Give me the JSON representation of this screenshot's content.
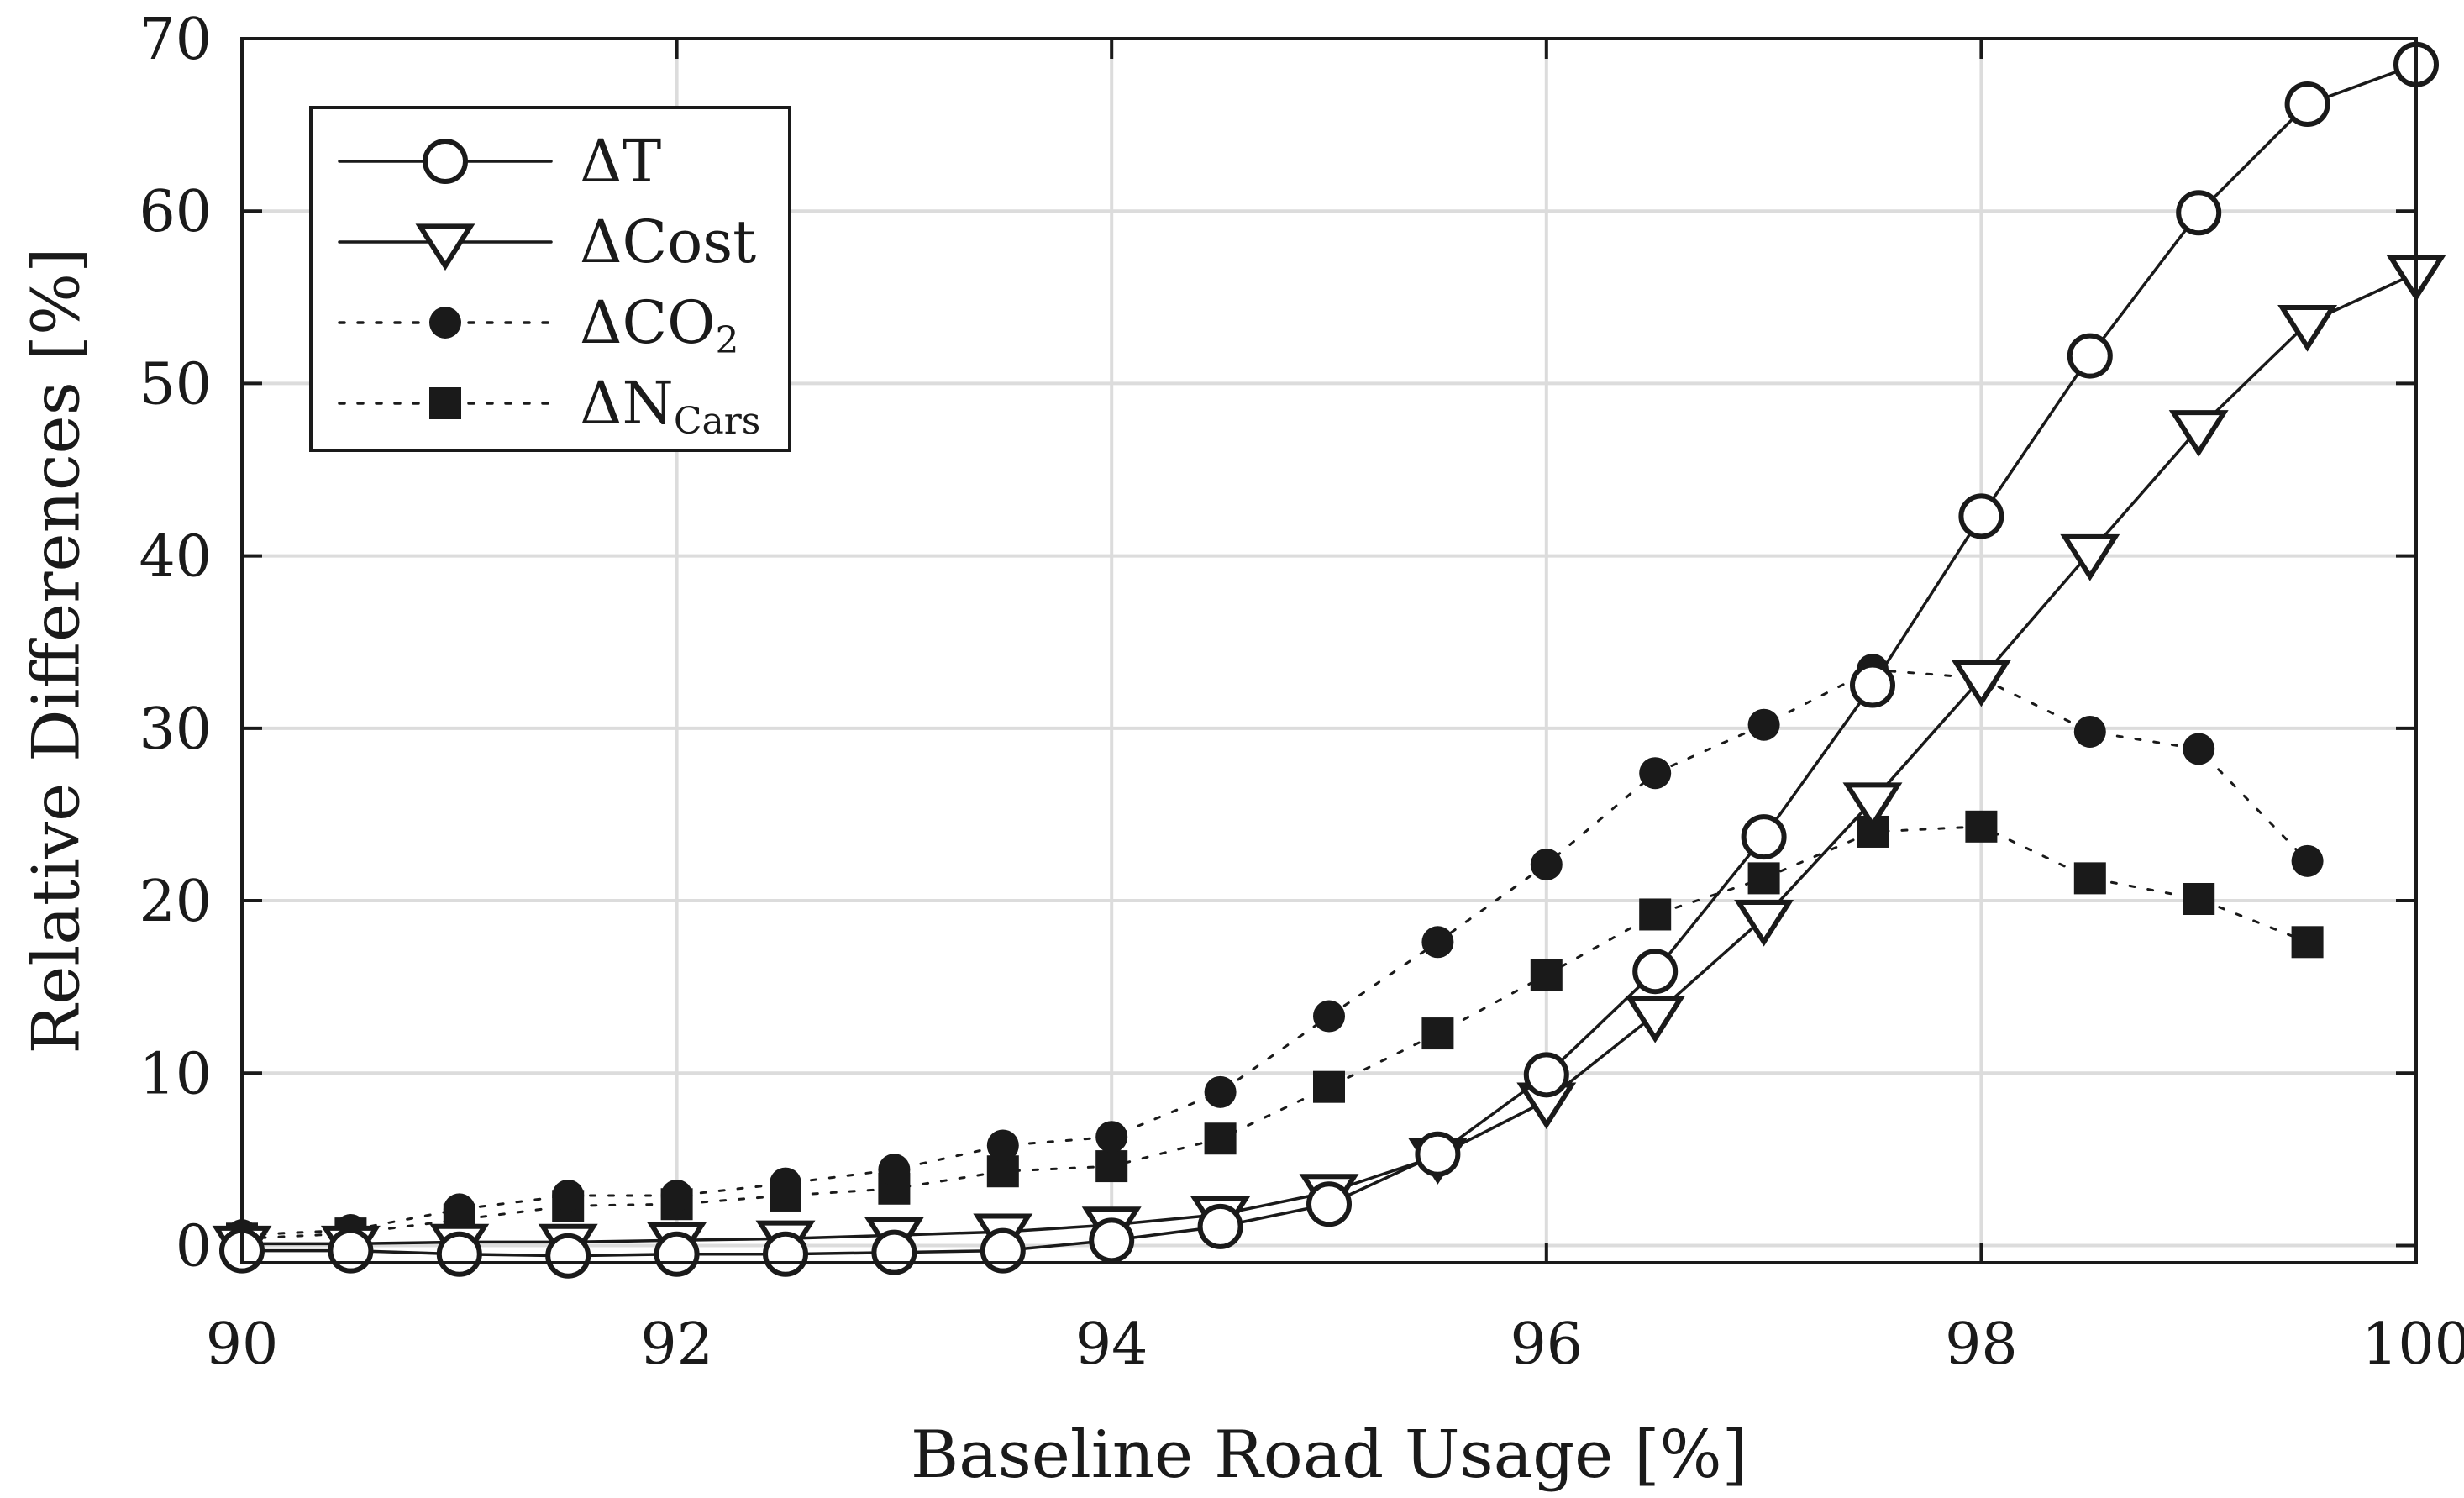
{
  "chart_data": {
    "type": "line",
    "title": "",
    "xlabel": "Baseline Road Usage [%]",
    "ylabel": "Relative Differences [%]",
    "xlim": [
      90,
      100
    ],
    "ylim": [
      -1,
      70
    ],
    "xticks": [
      90,
      92,
      94,
      96,
      98,
      100
    ],
    "yticks": [
      0,
      10,
      20,
      30,
      40,
      50,
      60,
      70
    ],
    "grid": true,
    "legend_position": "top-left",
    "x": [
      90,
      90.5,
      91,
      91.5,
      92,
      92.5,
      93,
      93.5,
      94,
      94.5,
      95,
      95.5,
      96,
      96.5,
      97,
      97.5,
      98,
      98.5,
      99,
      99.5,
      100
    ],
    "series": [
      {
        "legend": "ΔT",
        "label_main": "ΔT",
        "label_sub": "",
        "marker": "circle-open",
        "line_style": "solid",
        "color": "#1a1a1a",
        "values": [
          -0.3,
          -0.3,
          -0.5,
          -0.6,
          -0.5,
          -0.5,
          -0.4,
          -0.3,
          0.3,
          1.1,
          2.4,
          5.3,
          9.9,
          15.9,
          23.7,
          32.5,
          42.3,
          51.6,
          59.9,
          66.2,
          68.5
        ]
      },
      {
        "legend": "ΔCost",
        "label_main": "ΔCost",
        "label_sub": "",
        "marker": "triangle-down-open",
        "line_style": "solid",
        "color": "#1a1a1a",
        "values": [
          0.1,
          0.1,
          0.2,
          0.2,
          0.3,
          0.4,
          0.6,
          0.8,
          1.2,
          1.8,
          3.1,
          5.2,
          8.4,
          13.4,
          19.0,
          25.8,
          32.9,
          40.2,
          47.4,
          53.5,
          56.4
        ]
      },
      {
        "legend": "ΔCO2",
        "label_main": "ΔCO",
        "label_sub": "2",
        "marker": "circle-filled",
        "line_style": "dotted",
        "color": "#1a1a1a",
        "values": [
          0.6,
          0.9,
          2.1,
          2.9,
          2.9,
          3.6,
          4.4,
          5.8,
          6.3,
          8.9,
          13.3,
          17.6,
          22.1,
          27.4,
          30.2,
          33.4,
          32.9,
          29.8,
          28.8,
          22.3,
          null
        ]
      },
      {
        "legend": "ΔNCars",
        "label_main": "ΔN",
        "label_sub": "Cars",
        "marker": "square-filled",
        "line_style": "dotted",
        "color": "#1a1a1a",
        "values": [
          0.4,
          0.7,
          1.5,
          2.3,
          2.4,
          2.9,
          3.3,
          4.3,
          4.6,
          6.2,
          9.2,
          12.3,
          15.7,
          19.2,
          21.3,
          24.0,
          24.3,
          21.3,
          20.1,
          17.6,
          null
        ]
      }
    ]
  }
}
